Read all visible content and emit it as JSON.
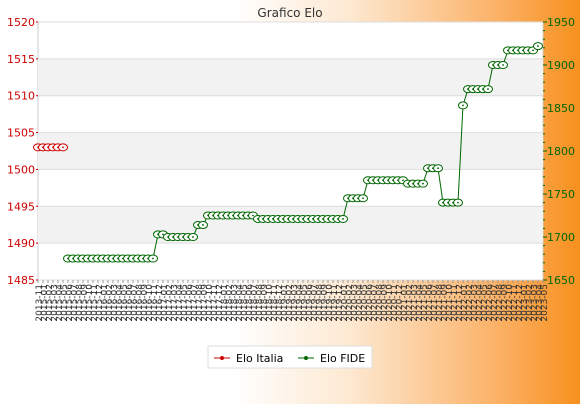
{
  "chart_data": {
    "type": "line",
    "title": "Grafico Elo",
    "x_labels": [
      "2013-11",
      "2015-01",
      "2015-02",
      "2015-03",
      "2015-04",
      "2015-05",
      "2015-06",
      "2015-07",
      "2015-08",
      "2015-09",
      "2015-10",
      "2015-11",
      "2015-12",
      "2016-01",
      "2016-02",
      "2016-03",
      "2016-04",
      "2016-05",
      "2016-06",
      "2016-07",
      "2016-08",
      "2016-09",
      "2016-10",
      "2016-11",
      "2016-12",
      "2017-01",
      "2017-02",
      "2017-03",
      "2017-04",
      "2017-05",
      "2017-06",
      "2017-07",
      "2017-08",
      "2017-09",
      "2017-10",
      "2017-11",
      "2017-12",
      "2018-01",
      "2018-02",
      "2018-03",
      "2018-04",
      "2018-05",
      "2018-06",
      "2018-07",
      "2018-08",
      "2018-09",
      "2018-10",
      "2018-11",
      "2018-12",
      "2019-01",
      "2019-02",
      "2019-03",
      "2019-04",
      "2019-05",
      "2019-06",
      "2019-07",
      "2019-08",
      "2019-09",
      "2019-10",
      "2019-11",
      "2019-12",
      "2020-01",
      "2020-02",
      "2020-03",
      "2020-04",
      "2020-05",
      "2020-06",
      "2020-07",
      "2020-08",
      "2020-09",
      "2020-10",
      "2020-11",
      "2020-12",
      "2021-01",
      "2021-02",
      "2021-03",
      "2021-04",
      "2021-05",
      "2021-06",
      "2021-07",
      "2021-08",
      "2021-09",
      "2021-10",
      "2021-11",
      "2021-12",
      "2022-01",
      "2022-02",
      "2022-03",
      "2022-04",
      "2022-05",
      "2022-06",
      "2022-07",
      "2022-08",
      "2022-09",
      "2022-10",
      "2022-11",
      "2022-12",
      "2023-01",
      "2023-02",
      "2023-03",
      "2023-04",
      "2023-05"
    ],
    "y_left": {
      "min": 1485,
      "max": 1520,
      "ticks": [
        1485,
        1490,
        1495,
        1500,
        1505,
        1510,
        1515,
        1520
      ]
    },
    "y_right": {
      "min": 1650,
      "max": 1950,
      "ticks": [
        1650,
        1700,
        1750,
        1800,
        1850,
        1900,
        1950
      ]
    },
    "series": [
      {
        "name": "Elo Italia",
        "color": "#cc0000",
        "axis": "left",
        "points": [
          [
            0,
            1503
          ],
          [
            1,
            1503
          ],
          [
            2,
            1503
          ],
          [
            3,
            1503
          ],
          [
            4,
            1503
          ],
          [
            5,
            1503
          ]
        ]
      },
      {
        "name": "Elo FIDE",
        "color": "#006600",
        "axis": "right",
        "points": [
          [
            6,
            1675
          ],
          [
            7,
            1675
          ],
          [
            8,
            1675
          ],
          [
            9,
            1675
          ],
          [
            10,
            1675
          ],
          [
            11,
            1675
          ],
          [
            12,
            1675
          ],
          [
            13,
            1675
          ],
          [
            14,
            1675
          ],
          [
            15,
            1675
          ],
          [
            16,
            1675
          ],
          [
            17,
            1675
          ],
          [
            18,
            1675
          ],
          [
            19,
            1675
          ],
          [
            20,
            1675
          ],
          [
            21,
            1675
          ],
          [
            22,
            1675
          ],
          [
            23,
            1675
          ],
          [
            24,
            1703
          ],
          [
            25,
            1703
          ],
          [
            26,
            1700
          ],
          [
            27,
            1700
          ],
          [
            28,
            1700
          ],
          [
            29,
            1700
          ],
          [
            30,
            1700
          ],
          [
            31,
            1700
          ],
          [
            32,
            1714
          ],
          [
            33,
            1714
          ],
          [
            34,
            1725
          ],
          [
            35,
            1725
          ],
          [
            36,
            1725
          ],
          [
            37,
            1725
          ],
          [
            38,
            1725
          ],
          [
            39,
            1725
          ],
          [
            40,
            1725
          ],
          [
            41,
            1725
          ],
          [
            42,
            1725
          ],
          [
            43,
            1725
          ],
          [
            44,
            1721
          ],
          [
            45,
            1721
          ],
          [
            46,
            1721
          ],
          [
            47,
            1721
          ],
          [
            48,
            1721
          ],
          [
            49,
            1721
          ],
          [
            50,
            1721
          ],
          [
            51,
            1721
          ],
          [
            52,
            1721
          ],
          [
            53,
            1721
          ],
          [
            54,
            1721
          ],
          [
            55,
            1721
          ],
          [
            56,
            1721
          ],
          [
            57,
            1721
          ],
          [
            58,
            1721
          ],
          [
            59,
            1721
          ],
          [
            60,
            1721
          ],
          [
            61,
            1721
          ],
          [
            62,
            1745
          ],
          [
            63,
            1745
          ],
          [
            64,
            1745
          ],
          [
            65,
            1745
          ],
          [
            66,
            1766
          ],
          [
            67,
            1766
          ],
          [
            68,
            1766
          ],
          [
            69,
            1766
          ],
          [
            70,
            1766
          ],
          [
            71,
            1766
          ],
          [
            72,
            1766
          ],
          [
            73,
            1766
          ],
          [
            74,
            1762
          ],
          [
            75,
            1762
          ],
          [
            76,
            1762
          ],
          [
            77,
            1762
          ],
          [
            78,
            1780
          ],
          [
            79,
            1780
          ],
          [
            80,
            1780
          ],
          [
            81,
            1740
          ],
          [
            82,
            1740
          ],
          [
            83,
            1740
          ],
          [
            84,
            1740
          ],
          [
            85,
            1853
          ],
          [
            86,
            1872
          ],
          [
            87,
            1872
          ],
          [
            88,
            1872
          ],
          [
            89,
            1872
          ],
          [
            90,
            1872
          ],
          [
            91,
            1900
          ],
          [
            92,
            1900
          ],
          [
            93,
            1900
          ],
          [
            94,
            1917
          ],
          [
            95,
            1917
          ],
          [
            96,
            1917
          ],
          [
            97,
            1917
          ],
          [
            98,
            1917
          ],
          [
            99,
            1917
          ],
          [
            100,
            1922
          ]
        ]
      }
    ],
    "legend_position": "bottom",
    "grid": true
  },
  "legend": [
    {
      "label": "Elo Italia",
      "color": "#cc0000"
    },
    {
      "label": "Elo FIDE",
      "color": "#006600"
    }
  ]
}
